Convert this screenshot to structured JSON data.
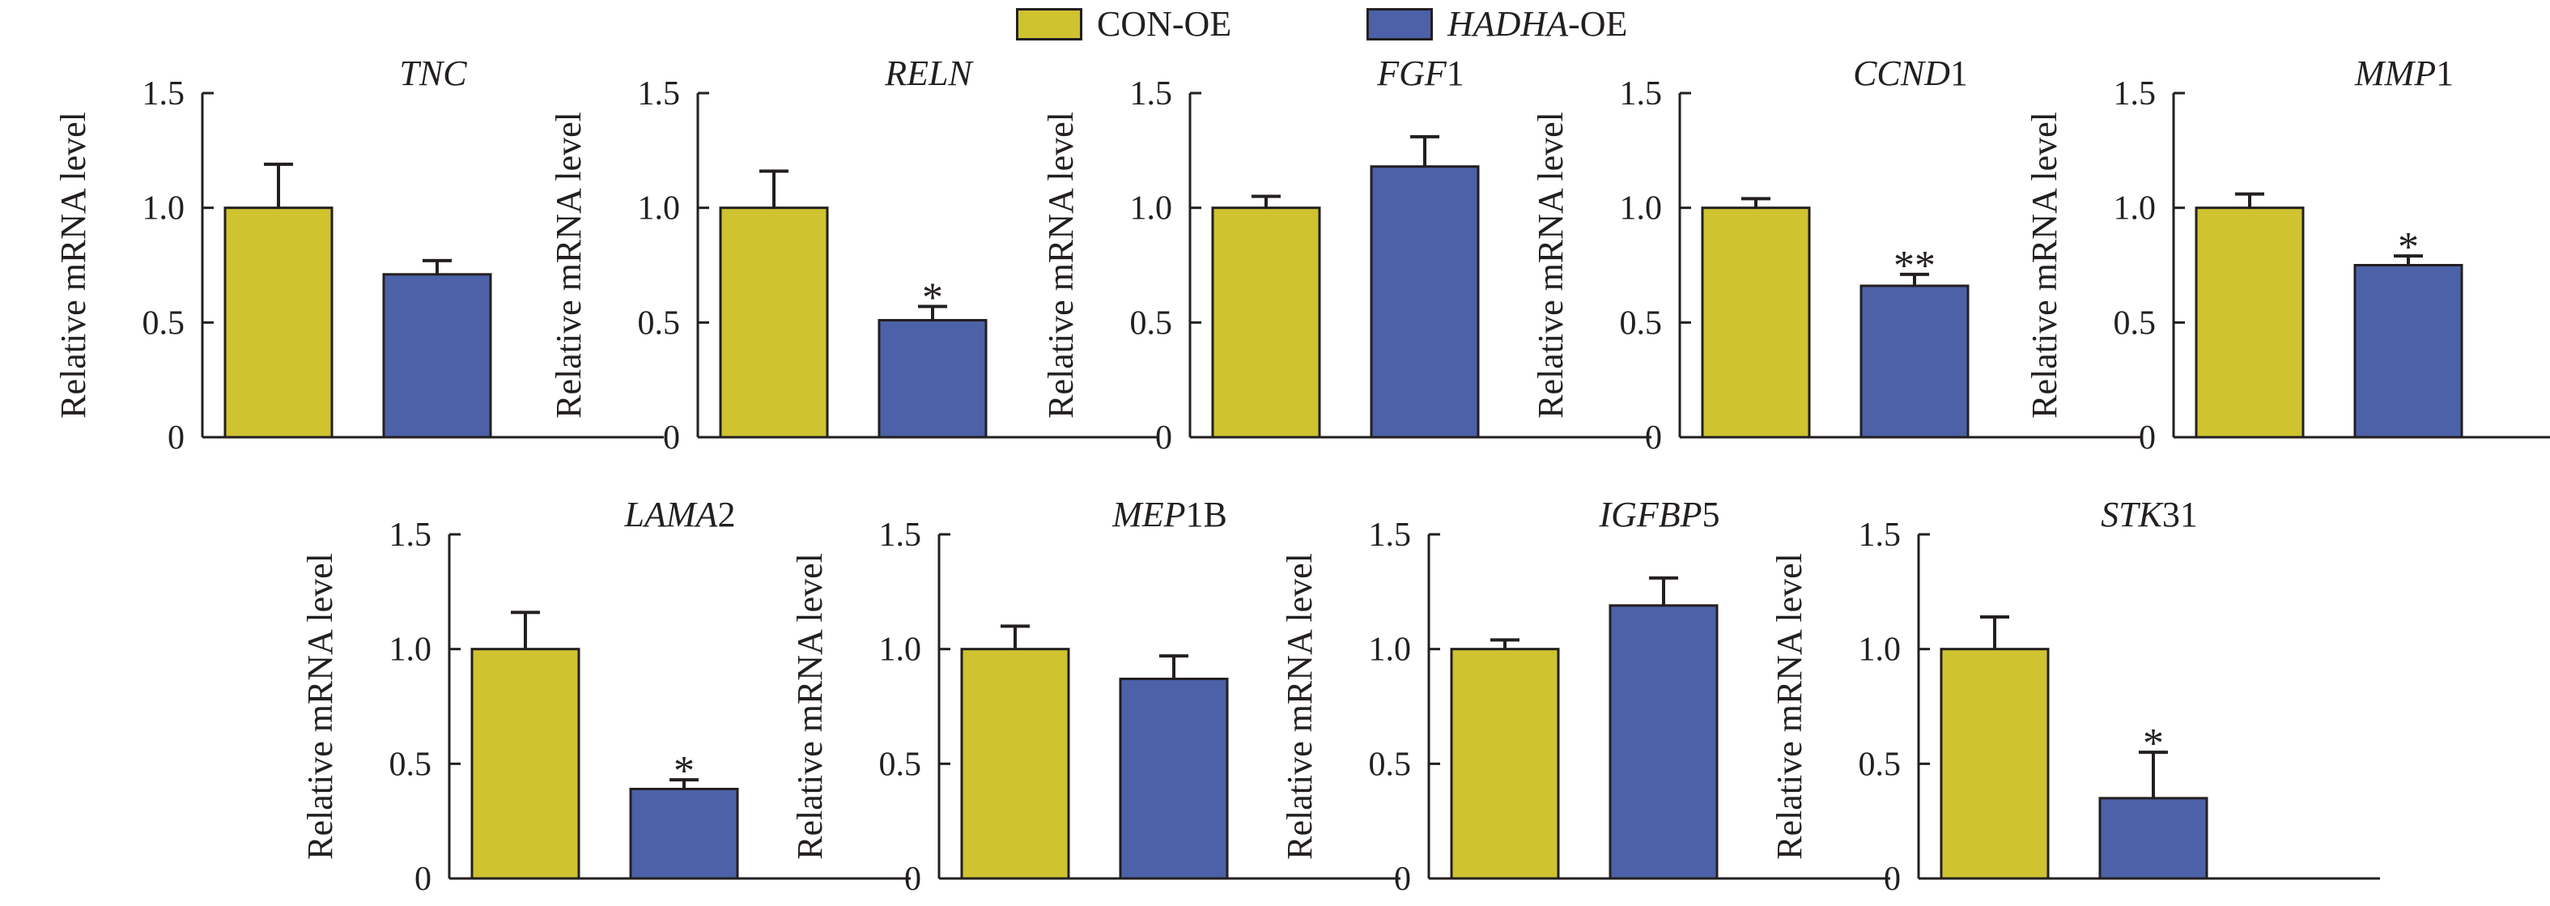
{
  "legend": {
    "items": [
      {
        "label": "CON-OE",
        "label_italic": "",
        "label_suffix": "CON-OE",
        "color": "#cfc32f"
      },
      {
        "label": "HADHA-OE",
        "label_italic": "HADHA",
        "label_suffix": "-OE",
        "color": "#4c61a8"
      }
    ]
  },
  "chart_data": [
    {
      "type": "bar",
      "title": "TNC",
      "title_italic": "TNC",
      "title_suffix": "",
      "ylabel": "Relative mRNA level",
      "ylim": [
        0,
        1.5
      ],
      "yticks": [
        "0",
        "0.5",
        "1.0",
        "1.5"
      ],
      "categories": [
        "CON-OE",
        "HADHA-OE"
      ],
      "values": [
        1.0,
        0.71
      ],
      "errors": [
        0.19,
        0.06
      ],
      "annotations": [
        "",
        ""
      ]
    },
    {
      "type": "bar",
      "title": "RELN",
      "title_italic": "RELN",
      "title_suffix": "",
      "ylabel": "Relative mRNA level",
      "ylim": [
        0,
        1.5
      ],
      "yticks": [
        "0",
        "0.5",
        "1.0",
        "1.5"
      ],
      "categories": [
        "CON-OE",
        "HADHA-OE"
      ],
      "values": [
        1.0,
        0.51
      ],
      "errors": [
        0.16,
        0.06
      ],
      "annotations": [
        "",
        "*"
      ]
    },
    {
      "type": "bar",
      "title": "FGF1",
      "title_italic": "FGF",
      "title_suffix": "1",
      "ylabel": "Relative mRNA level",
      "ylim": [
        0,
        1.5
      ],
      "yticks": [
        "0",
        "0.5",
        "1.0",
        "1.5"
      ],
      "categories": [
        "CON-OE",
        "HADHA-OE"
      ],
      "values": [
        1.0,
        1.18
      ],
      "errors": [
        0.05,
        0.13
      ],
      "annotations": [
        "",
        ""
      ]
    },
    {
      "type": "bar",
      "title": "CCND1",
      "title_italic": "CCND",
      "title_suffix": "1",
      "ylabel": "Relative mRNA level",
      "ylim": [
        0,
        1.5
      ],
      "yticks": [
        "0",
        "0.5",
        "1.0",
        "1.5"
      ],
      "categories": [
        "CON-OE",
        "HADHA-OE"
      ],
      "values": [
        1.0,
        0.66
      ],
      "errors": [
        0.04,
        0.05
      ],
      "annotations": [
        "",
        "**"
      ]
    },
    {
      "type": "bar",
      "title": "MMP1",
      "title_italic": "MMP",
      "title_suffix": "1",
      "ylabel": "Relative mRNA level",
      "ylim": [
        0,
        1.5
      ],
      "yticks": [
        "0",
        "0.5",
        "1.0",
        "1.5"
      ],
      "categories": [
        "CON-OE",
        "HADHA-OE"
      ],
      "values": [
        1.0,
        0.75
      ],
      "errors": [
        0.06,
        0.04
      ],
      "annotations": [
        "",
        "*"
      ]
    },
    {
      "type": "bar",
      "title": "LAMA2",
      "title_italic": "LAMA",
      "title_suffix": "2",
      "ylabel": "Relative mRNA level",
      "ylim": [
        0,
        1.5
      ],
      "yticks": [
        "0",
        "0.5",
        "1.0",
        "1.5"
      ],
      "categories": [
        "CON-OE",
        "HADHA-OE"
      ],
      "values": [
        1.0,
        0.39
      ],
      "errors": [
        0.16,
        0.04
      ],
      "annotations": [
        "",
        "*"
      ]
    },
    {
      "type": "bar",
      "title": "MEP1B",
      "title_italic": "MEP",
      "title_suffix": "1B",
      "ylabel": "Relative mRNA level",
      "ylim": [
        0,
        1.5
      ],
      "yticks": [
        "0",
        "0.5",
        "1.0",
        "1.5"
      ],
      "categories": [
        "CON-OE",
        "HADHA-OE"
      ],
      "values": [
        1.0,
        0.87
      ],
      "errors": [
        0.1,
        0.1
      ],
      "annotations": [
        "",
        ""
      ]
    },
    {
      "type": "bar",
      "title": "IGFBP5",
      "title_italic": "IGFBP",
      "title_suffix": "5",
      "ylabel": "Relative mRNA level",
      "ylim": [
        0,
        1.5
      ],
      "yticks": [
        "0",
        "0.5",
        "1.0",
        "1.5"
      ],
      "categories": [
        "CON-OE",
        "HADHA-OE"
      ],
      "values": [
        1.0,
        1.19
      ],
      "errors": [
        0.04,
        0.12
      ],
      "annotations": [
        "",
        ""
      ]
    },
    {
      "type": "bar",
      "title": "STK31",
      "title_italic": "STK",
      "title_suffix": "31",
      "ylabel": "Relative mRNA level",
      "ylim": [
        0,
        1.5
      ],
      "yticks": [
        "0",
        "0.5",
        "1.0",
        "1.5"
      ],
      "categories": [
        "CON-OE",
        "HADHA-OE"
      ],
      "values": [
        1.0,
        0.35
      ],
      "errors": [
        0.14,
        0.2
      ],
      "annotations": [
        "",
        "*"
      ]
    }
  ]
}
